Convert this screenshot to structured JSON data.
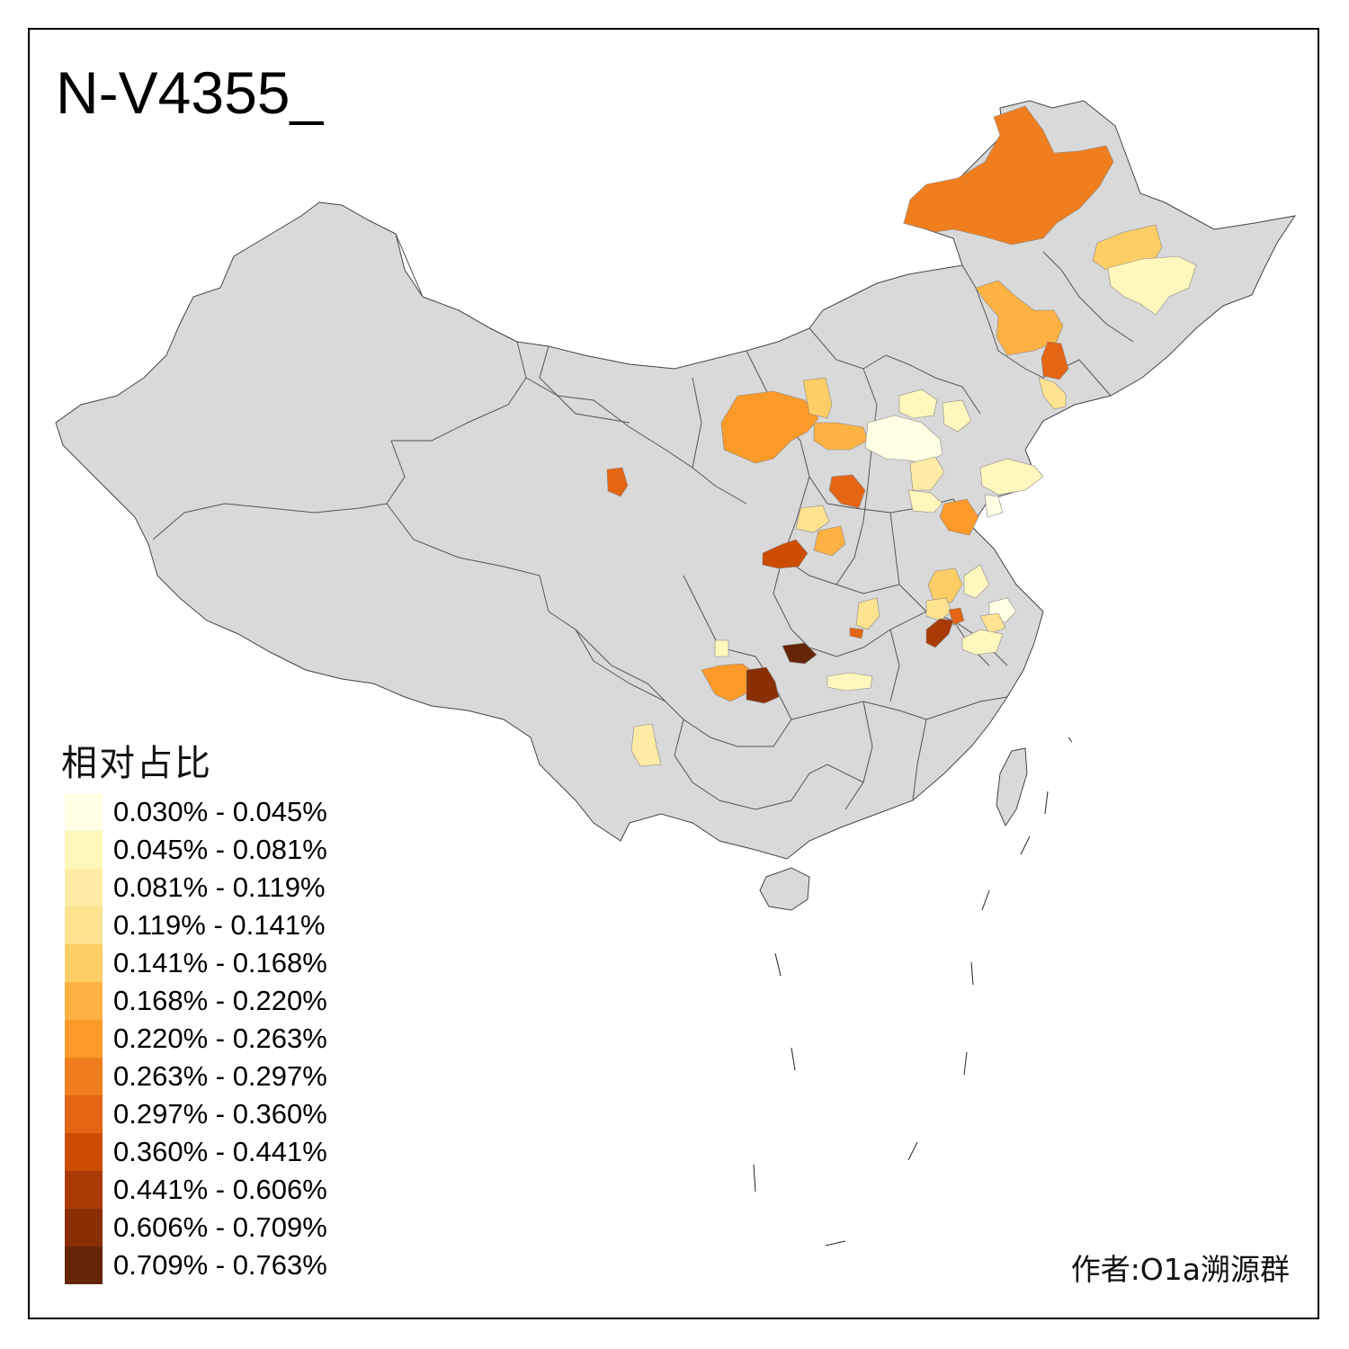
{
  "title": "N-V4355_",
  "legend": {
    "title": "相对占比",
    "bins": [
      {
        "label": "0.030% - 0.045%",
        "color": "#ffffe5"
      },
      {
        "label": "0.045% - 0.081%",
        "color": "#fff7bc"
      },
      {
        "label": "0.081% - 0.119%",
        "color": "#feeca6"
      },
      {
        "label": "0.119% - 0.141%",
        "color": "#fee391"
      },
      {
        "label": "0.141% - 0.168%",
        "color": "#fece66"
      },
      {
        "label": "0.168% - 0.220%",
        "color": "#feb244"
      },
      {
        "label": "0.220% - 0.263%",
        "color": "#fb9a29"
      },
      {
        "label": "0.263% - 0.297%",
        "color": "#f07e1e"
      },
      {
        "label": "0.297% - 0.360%",
        "color": "#e46514"
      },
      {
        "label": "0.360% - 0.441%",
        "color": "#cc4c02"
      },
      {
        "label": "0.441% - 0.606%",
        "color": "#aa3a04"
      },
      {
        "label": "0.606% - 0.709%",
        "color": "#8a2f05"
      },
      {
        "label": "0.709% - 0.763%",
        "color": "#662506"
      }
    ]
  },
  "author": "作者:O1a溯源群",
  "colors": {
    "base_land": "#d9d9d9",
    "border": "#555555",
    "frame": "#000000"
  }
}
